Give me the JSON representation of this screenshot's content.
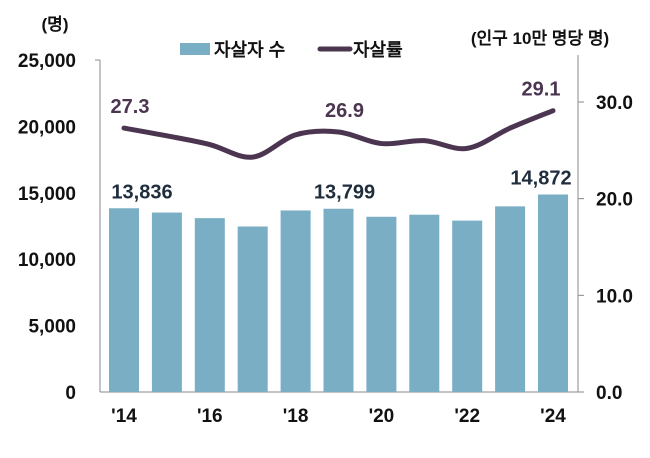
{
  "chart_data": {
    "type": "bar+line",
    "categories": [
      "2014",
      "2015",
      "2016",
      "2017",
      "2018",
      "2019",
      "2020",
      "2021",
      "2022",
      "2023",
      "2024"
    ],
    "x_tick_labels": [
      "'14",
      "'16",
      "'18",
      "'20",
      "'22",
      "'24"
    ],
    "series": [
      {
        "name": "자살자 수",
        "type": "bar",
        "axis": "left",
        "color": "#7aaec4",
        "values": [
          13836,
          13513,
          13092,
          12463,
          13670,
          13799,
          13195,
          13352,
          12906,
          13978,
          14872
        ]
      },
      {
        "name": "자살률",
        "type": "line",
        "axis": "right",
        "color": "#4b3550",
        "values": [
          27.3,
          26.5,
          25.6,
          24.3,
          26.6,
          26.9,
          25.7,
          26.0,
          25.2,
          27.3,
          29.1
        ]
      }
    ],
    "bar_data_labels": [
      {
        "index": 0,
        "text": "13,836"
      },
      {
        "index": 5,
        "text": "13,799"
      },
      {
        "index": 10,
        "text": "14,872"
      }
    ],
    "line_data_labels": [
      {
        "index": 0,
        "text": "27.3"
      },
      {
        "index": 5,
        "text": "26.9"
      },
      {
        "index": 10,
        "text": "29.1"
      }
    ],
    "left_axis": {
      "unit": "(명)",
      "ylim": [
        0,
        25000
      ],
      "ticks": [
        "0",
        "5,000",
        "10,000",
        "15,000",
        "20,000",
        "25,000"
      ]
    },
    "right_axis": {
      "unit": "(인구 10만 명당 명)",
      "ylim": [
        0,
        30
      ],
      "ticks": [
        "0.0",
        "10.0",
        "20.0",
        "30.0"
      ]
    },
    "legend_placement": "top-center"
  }
}
